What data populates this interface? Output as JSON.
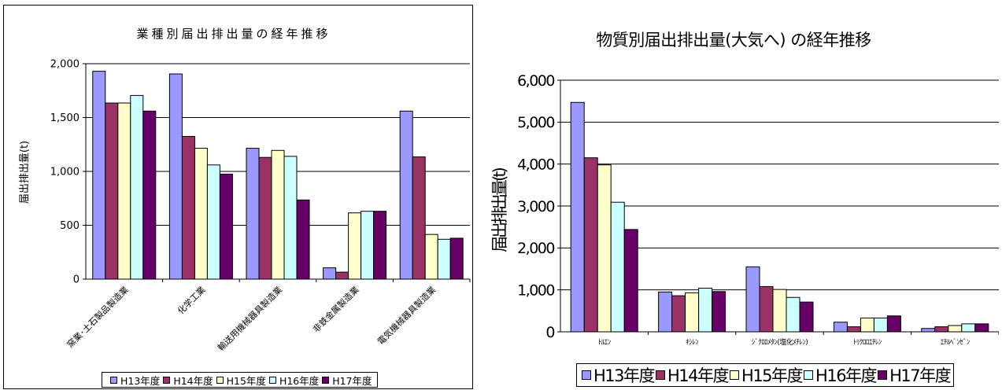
{
  "chart_data": [
    {
      "type": "bar",
      "title": "業種別届出排出量の経年推移",
      "ylabel": "届出排出量(t)",
      "xlabel": "",
      "ylim": [
        0,
        2000
      ],
      "yticks": [
        "0",
        "500",
        "1,000",
        "1,500",
        "2,000"
      ],
      "grid": true,
      "legend_position": "bottom",
      "categories": [
        "窯業･土石製品製造業",
        "化学工業",
        "輸送用機械器具製造業",
        "非鉄金属製造業",
        "電気機械器具製造業"
      ],
      "series": [
        {
          "name": "H13年度",
          "color": "#9999ff",
          "values": [
            1930,
            1905,
            1215,
            105,
            1560
          ]
        },
        {
          "name": "H14年度",
          "color": "#993366",
          "values": [
            1635,
            1325,
            1130,
            65,
            1135
          ]
        },
        {
          "name": "H15年度",
          "color": "#ffffcc",
          "values": [
            1635,
            1215,
            1195,
            615,
            415
          ]
        },
        {
          "name": "H16年度",
          "color": "#ccffff",
          "values": [
            1705,
            1060,
            1140,
            630,
            370
          ]
        },
        {
          "name": "H17年度",
          "color": "#660066",
          "values": [
            1560,
            975,
            735,
            630,
            380
          ]
        }
      ]
    },
    {
      "type": "bar",
      "title": "物質別届出排出量(大気へ) の経年推移",
      "ylabel": "届出排出量(t)",
      "xlabel": "",
      "ylim": [
        0,
        6000
      ],
      "yticks": [
        "0",
        "1,000",
        "2,000",
        "3,000",
        "4,000",
        "5,000",
        "6,000"
      ],
      "grid": true,
      "legend_position": "bottom",
      "categories": [
        "ﾄﾙｴﾝ",
        "ｷｼﾚﾝ",
        "ｼﾞｸﾛﾛﾒﾀﾝ(塩化ﾒﾁﾚﾝ)",
        "ﾄﾘｸﾛﾛｴﾁﾚﾝ",
        "ｴﾁﾙﾍﾞﾝｾﾞﾝ"
      ],
      "series": [
        {
          "name": "H13年度",
          "color": "#9999ff",
          "values": [
            5470,
            950,
            1550,
            230,
            80
          ]
        },
        {
          "name": "H14年度",
          "color": "#993366",
          "values": [
            4150,
            860,
            1080,
            120,
            120
          ]
        },
        {
          "name": "H15年度",
          "color": "#ffffcc",
          "values": [
            3980,
            930,
            1010,
            330,
            150
          ]
        },
        {
          "name": "H16年度",
          "color": "#ccffff",
          "values": [
            3090,
            1040,
            820,
            330,
            190
          ]
        },
        {
          "name": "H17年度",
          "color": "#660066",
          "values": [
            2440,
            960,
            710,
            380,
            190
          ]
        }
      ]
    }
  ]
}
